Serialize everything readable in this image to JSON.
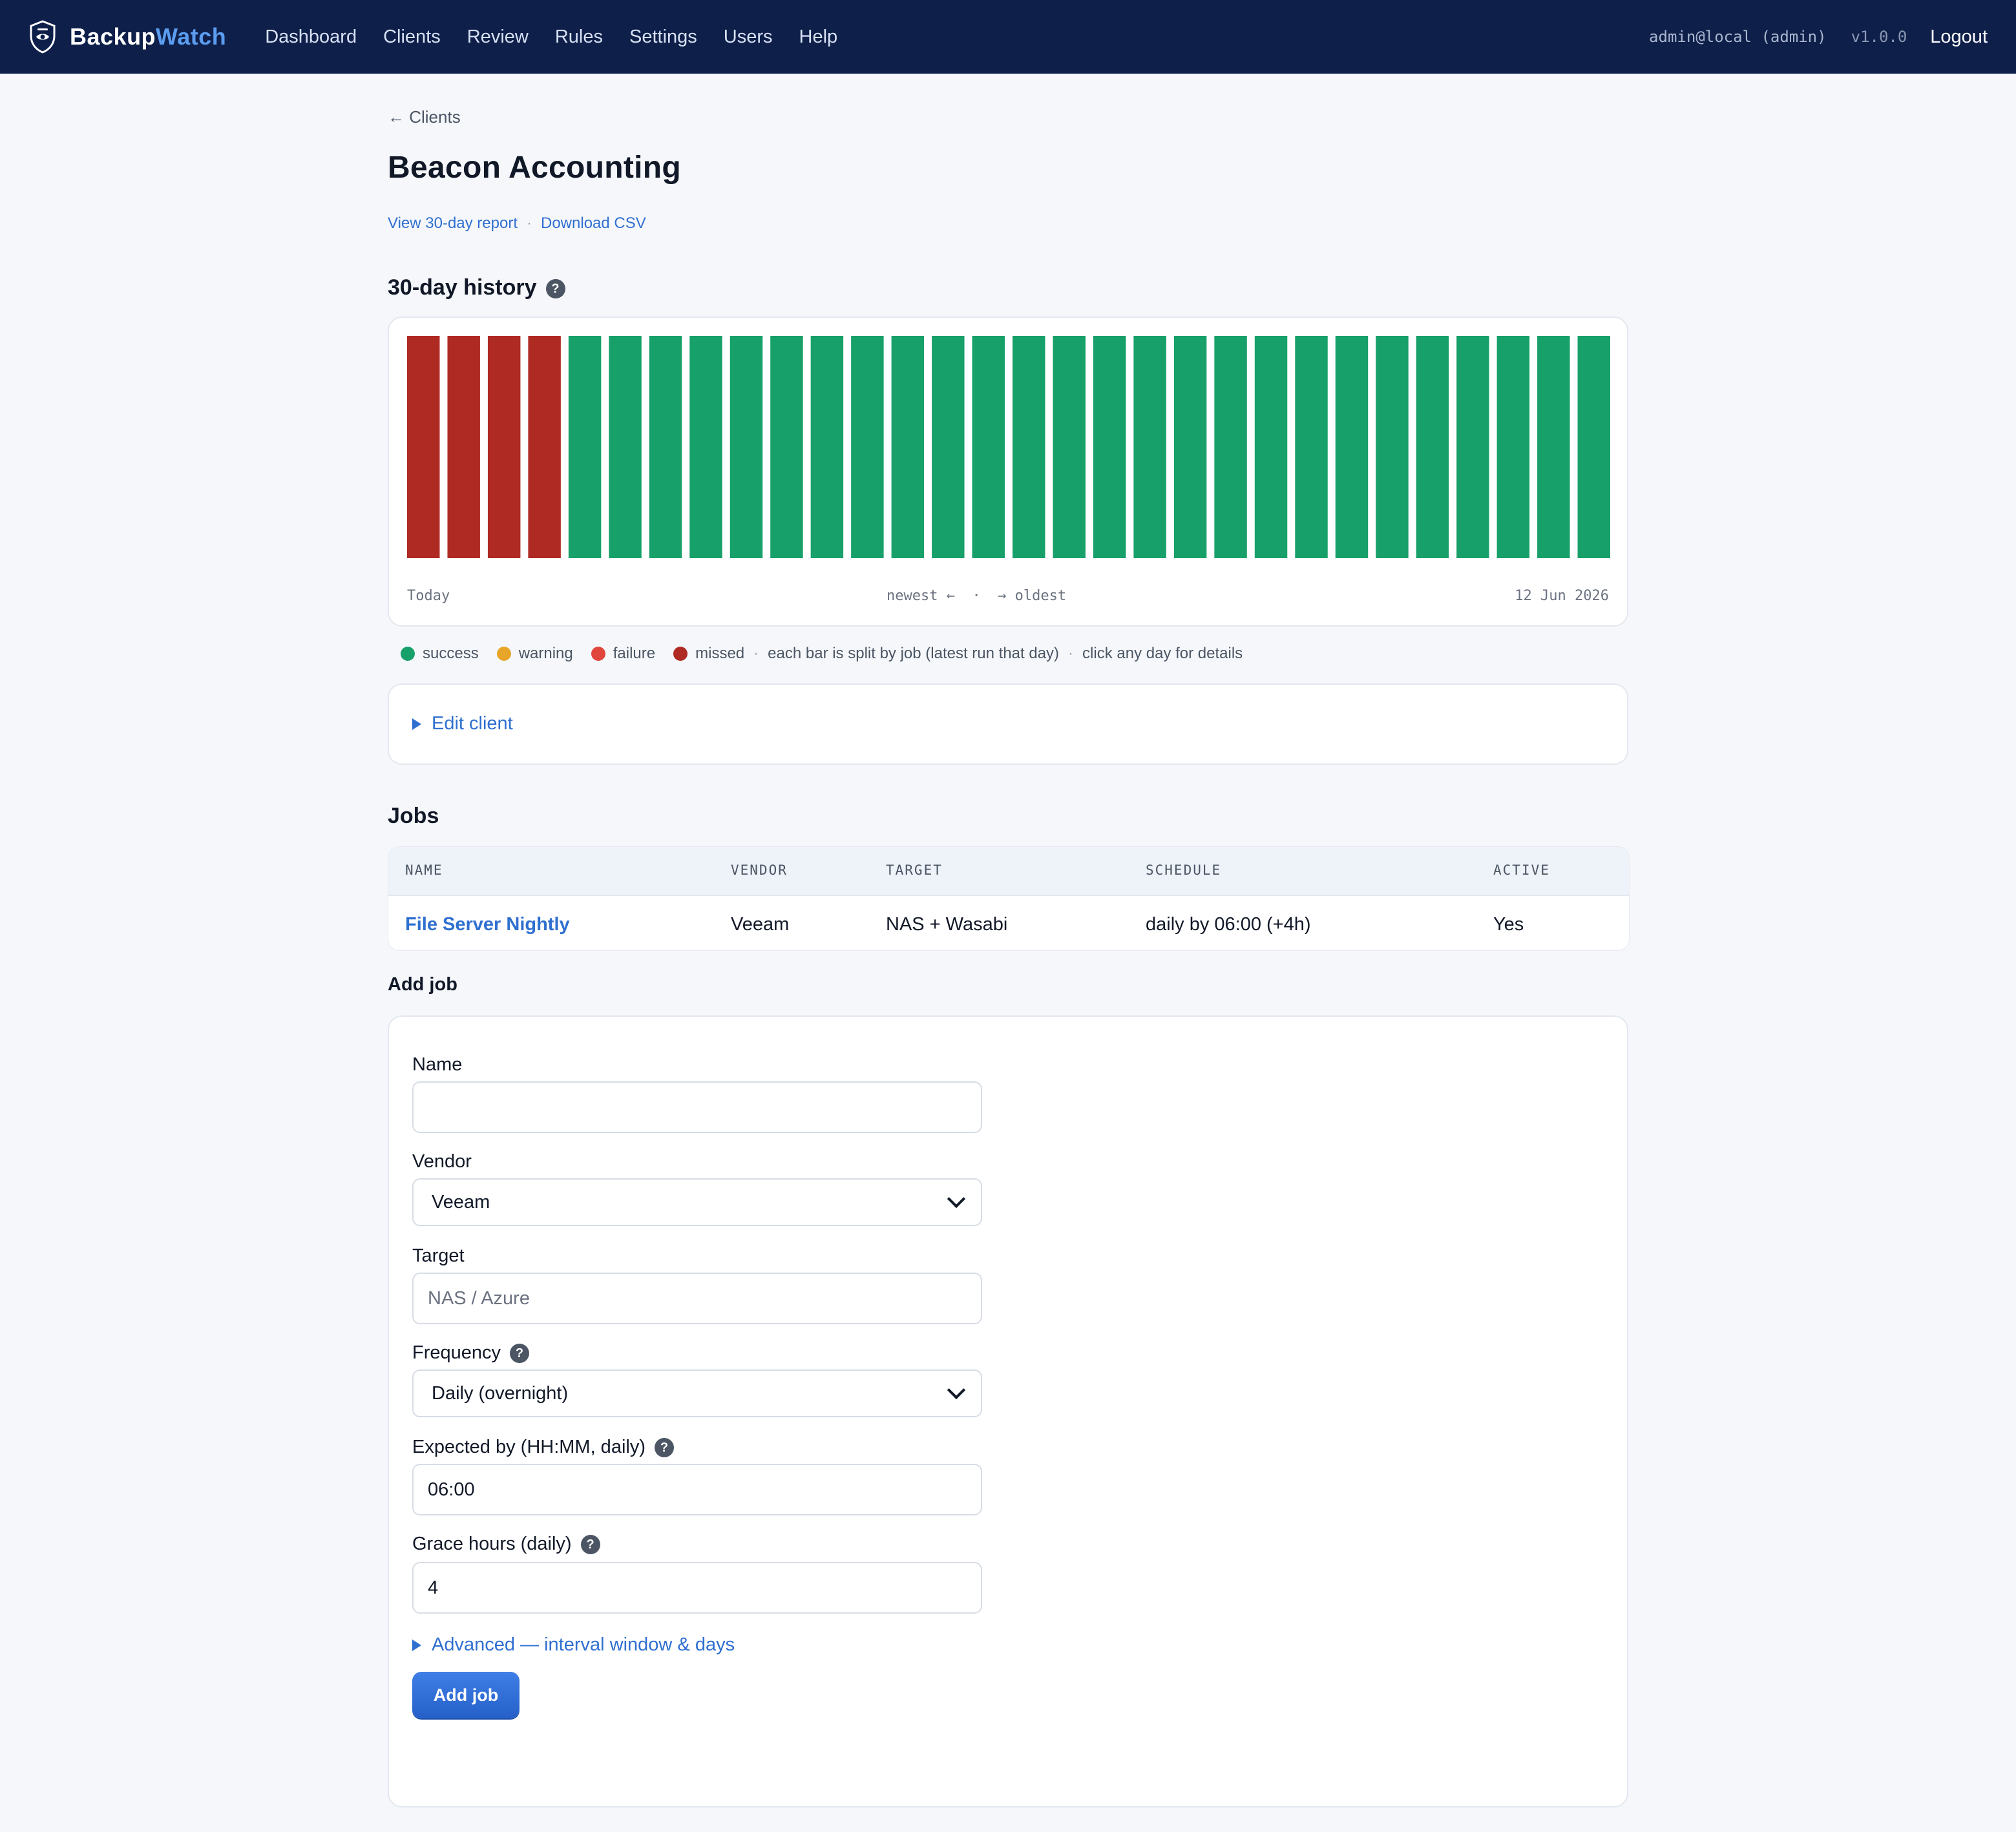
{
  "colors": {
    "nav_bg": "#0e1f4a",
    "accent": "#2f6fd0",
    "success": "#18a06a",
    "warning": "#e7a52a",
    "failure": "#e0463c",
    "missed": "#b02a24"
  },
  "nav": {
    "brand_part1": "Backup",
    "brand_part2": "Watch",
    "links": [
      "Dashboard",
      "Clients",
      "Review",
      "Rules",
      "Settings",
      "Users",
      "Help"
    ],
    "user": "admin@local (admin)",
    "version": "v1.0.0",
    "logout": "Logout"
  },
  "page": {
    "back": "← Clients",
    "title": "Beacon Accounting",
    "report_link": "View 30-day report",
    "csv_link": "Download CSV",
    "separator": "·"
  },
  "history": {
    "title": "30-day history",
    "help": "?",
    "left_label": "Today",
    "center_label": "newest ←  ·  → oldest",
    "right_label": "12 Jun 2026"
  },
  "chart_data": {
    "type": "bar",
    "days": 30,
    "order": "newest to oldest",
    "statuses": [
      "missed",
      "missed",
      "missed",
      "missed",
      "success",
      "success",
      "success",
      "success",
      "success",
      "success",
      "success",
      "success",
      "success",
      "success",
      "success",
      "success",
      "success",
      "success",
      "success",
      "success",
      "success",
      "success",
      "success",
      "success",
      "success",
      "success",
      "success",
      "success",
      "success",
      "success"
    ]
  },
  "legend": {
    "success": "success",
    "warning": "warning",
    "failure": "failure",
    "missed": "missed",
    "note1": "each bar is split by job (latest run that day)",
    "note2": "click any day for details",
    "separator": "·"
  },
  "edit_client": "Edit client",
  "jobs": {
    "title": "Jobs",
    "columns": [
      "NAME",
      "VENDOR",
      "TARGET",
      "SCHEDULE",
      "ACTIVE"
    ],
    "rows": [
      {
        "name": "File Server Nightly",
        "vendor": "Veeam",
        "target": "NAS + Wasabi",
        "schedule": "daily by 06:00 (+4h)",
        "active": "Yes"
      }
    ]
  },
  "add_job": {
    "title": "Add job",
    "name_label": "Name",
    "name_value": "",
    "vendor_label": "Vendor",
    "vendor_value": "Veeam",
    "target_label": "Target",
    "target_placeholder": "NAS / Azure",
    "frequency_label": "Frequency",
    "frequency_value": "Daily (overnight)",
    "expected_label": "Expected by (HH:MM, daily)",
    "expected_value": "06:00",
    "grace_label": "Grace hours (daily)",
    "grace_value": "4",
    "advanced": "Advanced — interval window & days",
    "submit": "Add job",
    "help": "?"
  }
}
